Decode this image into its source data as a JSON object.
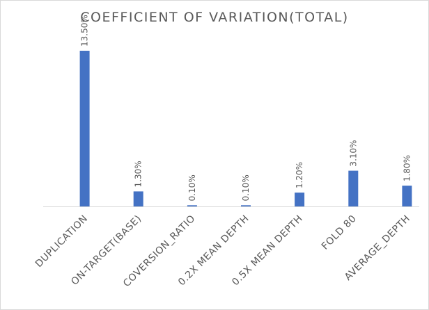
{
  "chart_data": {
    "type": "bar",
    "title": "COEFFICIENT OF VARIATION(TOTAL)",
    "categories": [
      "DUPLICATION",
      "ON-TARGET(BASE)",
      "COVERSION_RATIO",
      "0.2X MEAN DEPTH",
      "0.5X MEAN DEPTH",
      "FOLD 80",
      "AVERAGE_DEPTH"
    ],
    "series": [
      {
        "values": [
          13.5,
          1.3,
          0.1,
          0.1,
          1.2,
          3.1,
          1.8
        ]
      }
    ],
    "data_labels": [
      "13.50%",
      "1.30%",
      "0.10%",
      "0.10%",
      "1.20%",
      "3.10%",
      "1.80%"
    ],
    "unit": "%",
    "ylim": [
      0,
      13.5
    ],
    "grid": false,
    "legend": "none",
    "bar_color": "#4472c4",
    "axis_color": "#d9d9d9",
    "text_color": "#595959"
  }
}
